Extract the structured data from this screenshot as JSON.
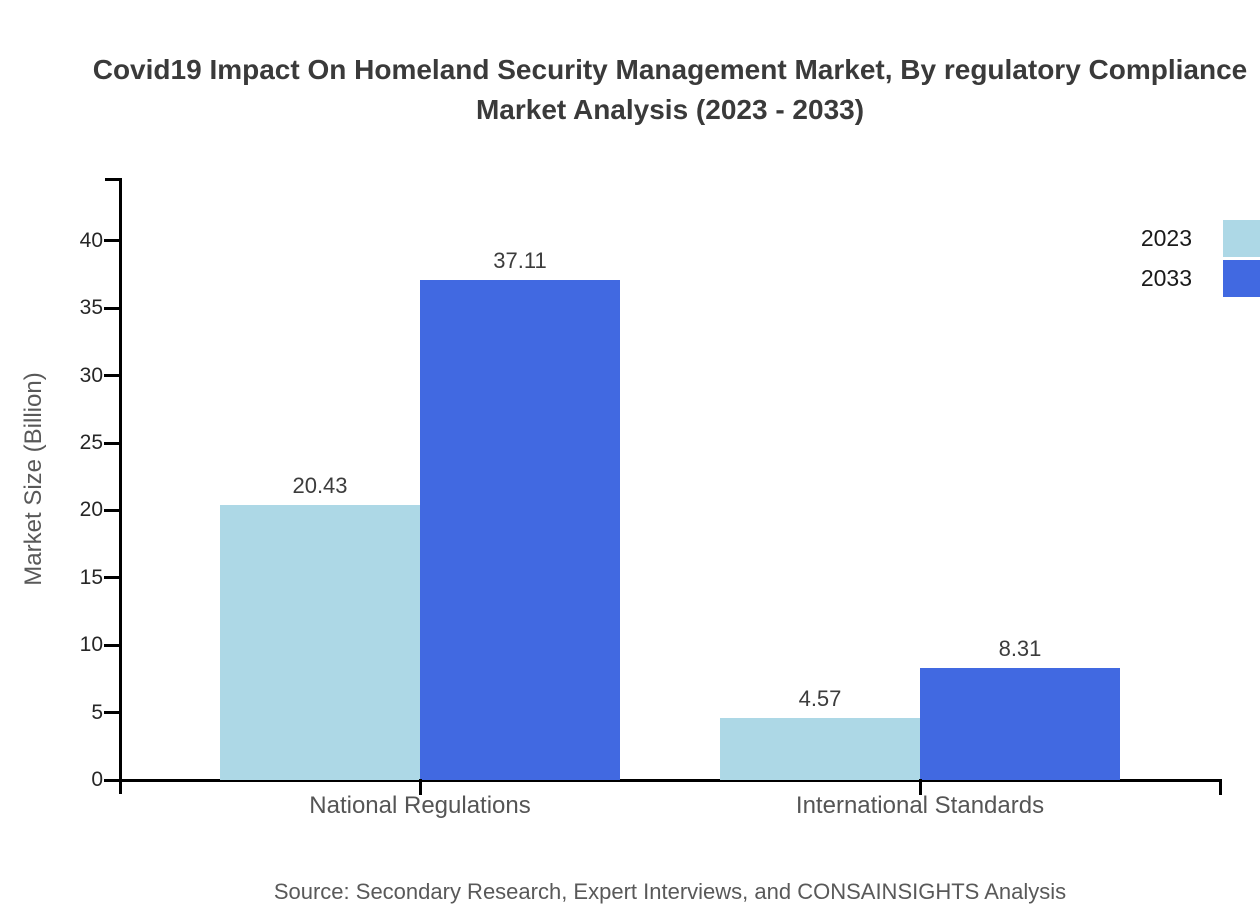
{
  "title": {
    "line1": "Covid19 Impact On Homeland Security Management Market, By regulatory Compliance",
    "line2": "Market Analysis (2023 - 2033)"
  },
  "chart_data": {
    "type": "bar",
    "title": "Covid19 Impact On Homeland Security Management Market, By regulatory Compliance Market Analysis (2023 - 2033)",
    "categories": [
      "National Regulations",
      "International Standards"
    ],
    "series": [
      {
        "name": "2023",
        "color": "#ADD8E6",
        "values": [
          20.43,
          4.57
        ]
      },
      {
        "name": "2033",
        "color": "#4169E1",
        "values": [
          37.11,
          8.31
        ]
      }
    ],
    "xlabel": "",
    "ylabel": "Market Size (Billion)",
    "ylim": [
      0,
      40
    ],
    "yticks": [
      0,
      5,
      10,
      15,
      20,
      25,
      30,
      35,
      40
    ],
    "grid": false,
    "legend_position": "top-right",
    "value_labels": [
      "20.43",
      "37.11",
      "4.57",
      "8.31"
    ]
  },
  "source": "Source: Secondary Research, Expert Interviews, and CONSAINSIGHTS Analysis"
}
